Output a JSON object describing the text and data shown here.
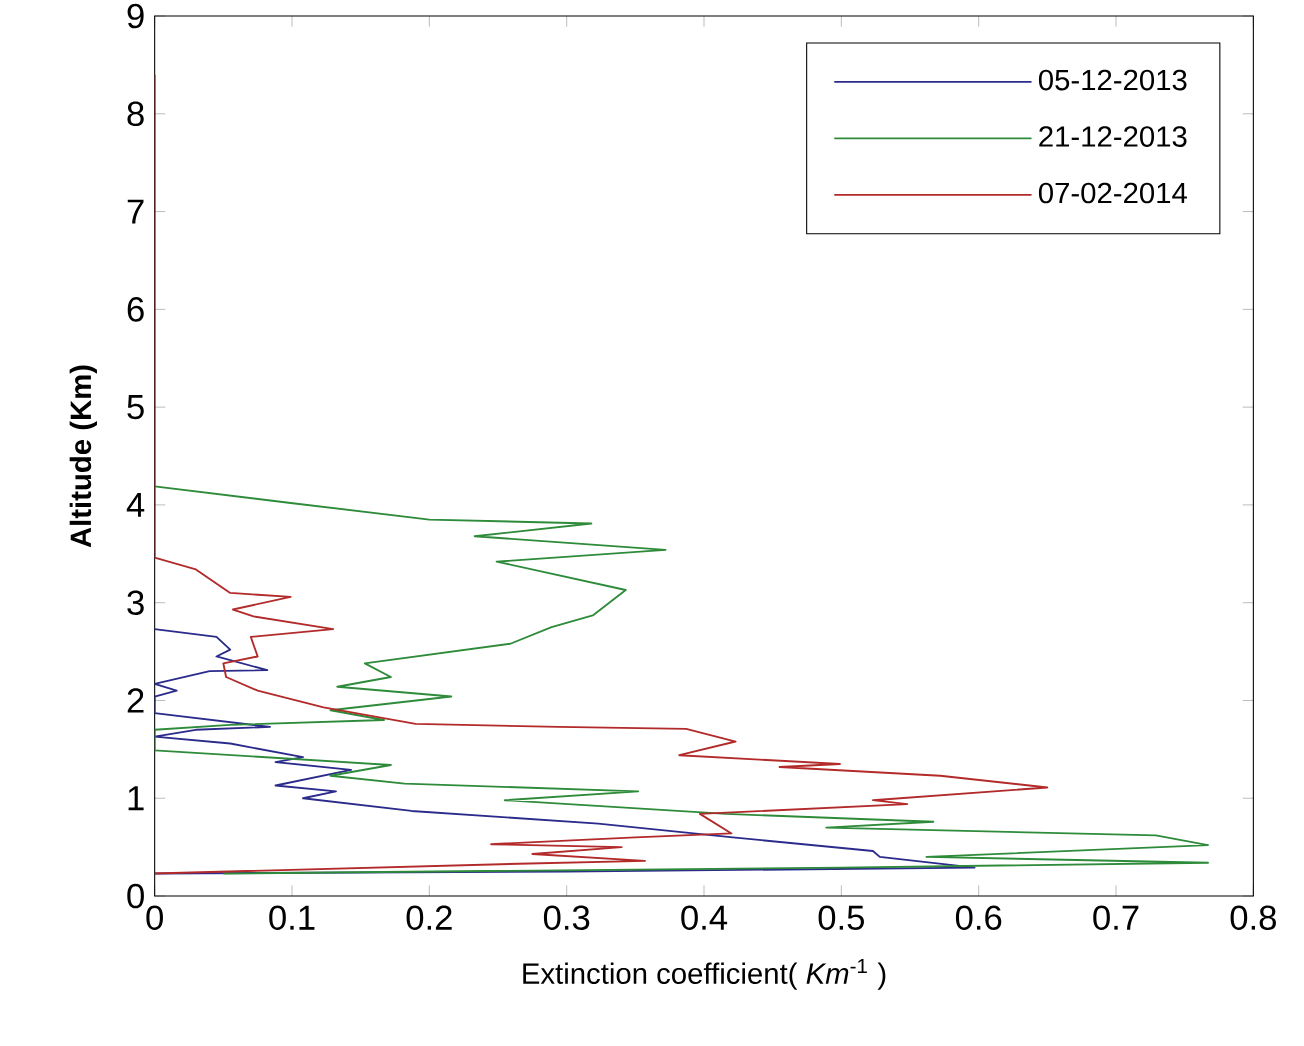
{
  "chart_data": {
    "type": "line",
    "xlabel": "Extinction coefficient( *Km*$^{-1}$ )",
    "ylabel": "**Altitude (Km)**",
    "xlim": [
      0,
      0.8
    ],
    "ylim": [
      0,
      9
    ],
    "xticks": [
      0,
      0.1,
      0.2,
      0.3,
      0.4,
      0.5,
      0.6,
      0.7,
      0.8
    ],
    "yticks": [
      0,
      1,
      2,
      3,
      4,
      5,
      6,
      7,
      8,
      9
    ],
    "grid": false,
    "legend": "top right",
    "marker": "none",
    "line_style": "solid",
    "series": [
      {
        "name": "05-12-2013",
        "color": "#2b2b8c",
        "x": [
          0,
          0.045,
          0.055,
          0.045,
          0.082,
          0.04,
          0,
          0.016,
          0,
          0,
          0.084,
          0.03,
          0,
          0.055,
          0.108,
          0.088,
          0.143,
          0.088,
          0.132,
          0.108,
          0.187,
          0.323,
          0.421,
          0.523,
          0.528,
          0.597,
          0.3,
          0
        ],
        "values": [
          2.73,
          2.65,
          2.52,
          2.45,
          2.31,
          2.3,
          2.17,
          2.1,
          2.04,
          1.87,
          1.73,
          1.7,
          1.63,
          1.56,
          1.42,
          1.37,
          1.29,
          1.13,
          1.07,
          1.0,
          0.87,
          0.74,
          0.6,
          0.46,
          0.4,
          0.29,
          0.25,
          0.23
        ]
      },
      {
        "name": "21-12-2013",
        "color": "#2e8b3a",
        "x": [
          0,
          0.099,
          0.2,
          0.318,
          0.233,
          0.372,
          0.249,
          0.343,
          0.319,
          0.289,
          0.259,
          0.153,
          0.172,
          0.133,
          0.216,
          0.128,
          0.167,
          0.055,
          0,
          0,
          0.172,
          0.128,
          0.182,
          0.352,
          0.255,
          0.416,
          0.567,
          0.489,
          0.729,
          0.767,
          0.562,
          0.767,
          0.5,
          0.05
        ],
        "values": [
          4.19,
          4.02,
          3.85,
          3.81,
          3.68,
          3.54,
          3.42,
          3.13,
          2.87,
          2.75,
          2.58,
          2.38,
          2.24,
          2.14,
          2.04,
          1.9,
          1.8,
          1.75,
          1.7,
          1.49,
          1.34,
          1.23,
          1.15,
          1.07,
          0.98,
          0.84,
          0.76,
          0.7,
          0.62,
          0.52,
          0.4,
          0.34,
          0.29,
          0.23
        ]
      },
      {
        "name": "07-02-2014",
        "color": "#b22a2a",
        "x": [
          0,
          0,
          0.03,
          0.055,
          0.099,
          0.057,
          0.072,
          0.13,
          0.07,
          0.075,
          0.05,
          0.052,
          0.075,
          0.123,
          0.19,
          0.294,
          0.387,
          0.423,
          0.382,
          0.499,
          0.455,
          0.572,
          0.65,
          0.523,
          0.548,
          0.397,
          0.42,
          0.35,
          0.245,
          0.34,
          0.275,
          0.357,
          0.265,
          0
        ],
        "values": [
          8.4,
          3.46,
          3.34,
          3.1,
          3.06,
          2.93,
          2.86,
          2.73,
          2.65,
          2.45,
          2.38,
          2.24,
          2.1,
          1.93,
          1.76,
          1.73,
          1.71,
          1.58,
          1.44,
          1.35,
          1.32,
          1.23,
          1.11,
          0.98,
          0.94,
          0.84,
          0.64,
          0.6,
          0.53,
          0.5,
          0.43,
          0.36,
          0.33,
          0.23
        ]
      }
    ]
  }
}
